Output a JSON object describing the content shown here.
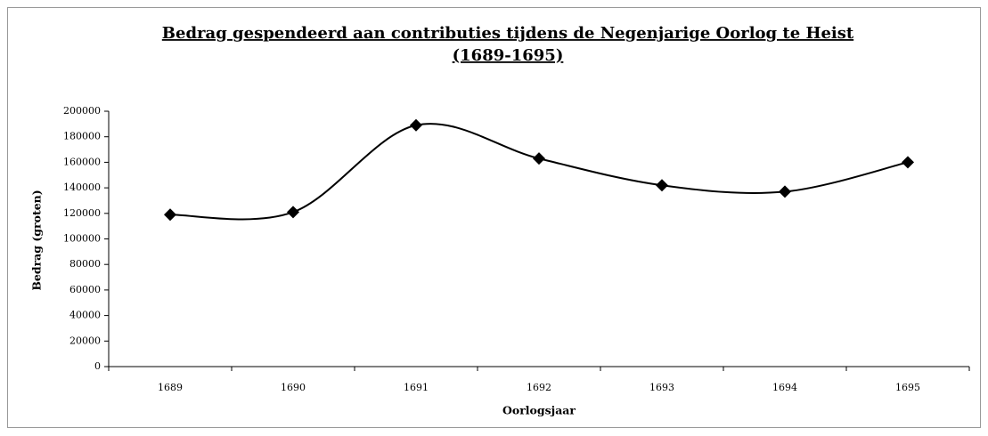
{
  "chart_data": {
    "type": "line",
    "title": [
      "Bedrag gespendeerd aan contributies tijdens de Negenjarige Oorlog te Heist",
      "(1689-1695)"
    ],
    "x_label": "Oorlogsjaar",
    "y_label": "Bedrag (groten)",
    "categories": [
      "1689",
      "1690",
      "1691",
      "1692",
      "1693",
      "1694",
      "1695"
    ],
    "values": [
      119000,
      121000,
      189000,
      163000,
      142000,
      137000,
      160000
    ],
    "color": "#000000",
    "smooth": true,
    "marker": "diamond",
    "ylim": [
      0,
      200000
    ],
    "yticks": [
      0,
      20000,
      40000,
      60000,
      80000,
      100000,
      120000,
      140000,
      160000,
      180000,
      200000
    ]
  }
}
